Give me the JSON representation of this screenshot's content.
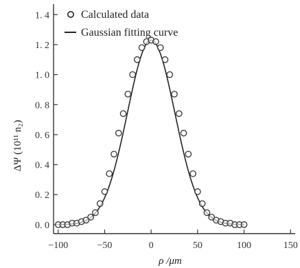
{
  "chart_data": {
    "type": "scatter",
    "xlabel": "ρ /μm",
    "ylabel": "ΔΨ (10¹¹ n₂)",
    "xlim": [
      -105,
      155
    ],
    "ylim": [
      -0.06,
      1.47
    ],
    "xticks": [
      -100,
      -50,
      0,
      50,
      100,
      150
    ],
    "xtick_labels": [
      "−100",
      "−50",
      "0",
      "50",
      "100",
      "150"
    ],
    "yticks": [
      0.0,
      0.2,
      0.4,
      0.6,
      0.8,
      1.0,
      1.2,
      1.4
    ],
    "ytick_labels": [
      "0. 0",
      "0. 2",
      "0. 4",
      "0. 6",
      "0. 8",
      "1. 0",
      "1. 2",
      "1. 4"
    ],
    "grid": false,
    "legend_position": "top-left",
    "series": [
      {
        "name": "Calculated data",
        "marker": "open-circle",
        "x": [
          -100,
          -95,
          -90,
          -85,
          -80,
          -75,
          -70,
          -65,
          -60,
          -55,
          -50,
          -45,
          -40,
          -35,
          -30,
          -25,
          -20,
          -15,
          -10,
          -5,
          0,
          5,
          10,
          15,
          20,
          25,
          30,
          35,
          40,
          45,
          50,
          55,
          60,
          65,
          70,
          75,
          80,
          85,
          90,
          95,
          100
        ],
        "y": [
          0.0,
          0.0,
          0.0,
          0.01,
          0.01,
          0.02,
          0.03,
          0.05,
          0.08,
          0.14,
          0.22,
          0.34,
          0.47,
          0.61,
          0.74,
          0.87,
          1.0,
          1.1,
          1.18,
          1.22,
          1.23,
          1.22,
          1.18,
          1.1,
          1.0,
          0.87,
          0.74,
          0.61,
          0.47,
          0.34,
          0.22,
          0.14,
          0.08,
          0.05,
          0.03,
          0.02,
          0.01,
          0.01,
          0.0,
          0.0,
          0.0
        ]
      },
      {
        "name": "Gaussian fitting curve",
        "marker": "line",
        "amplitude": 1.23,
        "center": 0,
        "sigma": 25.5
      }
    ]
  }
}
